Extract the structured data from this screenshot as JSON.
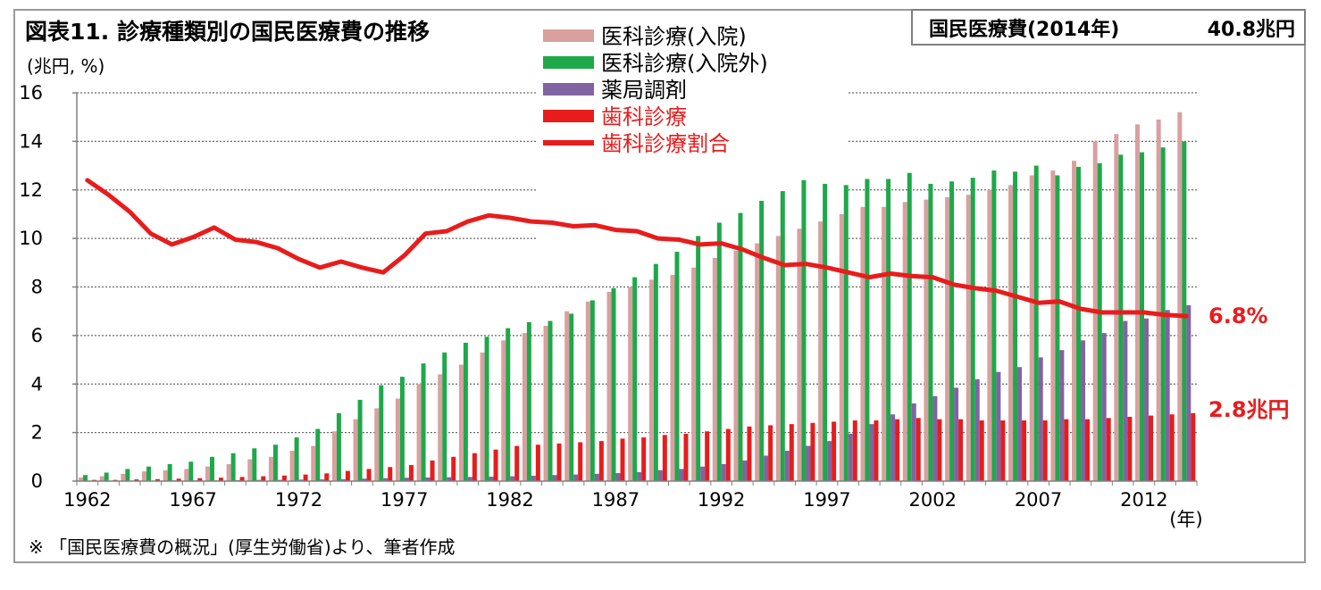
{
  "header": {
    "title": "図表11. 診療種類別の国民医療費の推移",
    "total_label": "国民医療費(2014年)",
    "total_value": "40.8兆円"
  },
  "footer": {
    "note": "※ 「国民医療費の概況」(厚生労働省)より、筆者作成"
  },
  "colors": {
    "inpatient": "#d9a0a0",
    "outpatient": "#1ea84a",
    "pharmacy": "#8064a2",
    "dental": "#e81c1c",
    "ratio": "#e81c1c",
    "grid": "#6a6a6a"
  },
  "chart_data": {
    "type": "bar",
    "ylabel": "(兆円, %)",
    "xlabel": "(年)",
    "ylim": [
      0,
      16
    ],
    "yticks": [
      "0",
      "2",
      "4",
      "6",
      "8",
      "10",
      "12",
      "14",
      "16"
    ],
    "xticks": [
      "1962",
      "1967",
      "1972",
      "1977",
      "1982",
      "1987",
      "1992",
      "1997",
      "2002",
      "2007",
      "2012"
    ],
    "grid": "horizontal dotted",
    "legend_position": "top-center",
    "x": [
      1962,
      1963,
      1964,
      1965,
      1966,
      1967,
      1968,
      1969,
      1970,
      1971,
      1972,
      1973,
      1974,
      1975,
      1976,
      1977,
      1978,
      1979,
      1980,
      1981,
      1982,
      1983,
      1984,
      1985,
      1986,
      1987,
      1988,
      1989,
      1990,
      1991,
      1992,
      1993,
      1994,
      1995,
      1996,
      1997,
      1998,
      1999,
      2000,
      2001,
      2002,
      2003,
      2004,
      2005,
      2006,
      2007,
      2008,
      2009,
      2010,
      2011,
      2012,
      2013,
      2014
    ],
    "series": [
      {
        "name": "医科診療(入院)",
        "key": "inpatient",
        "kind": "bar",
        "values": [
          0.15,
          0.2,
          0.3,
          0.4,
          0.45,
          0.5,
          0.6,
          0.7,
          0.9,
          1.0,
          1.25,
          1.45,
          2.05,
          2.55,
          3.0,
          3.4,
          4.0,
          4.4,
          4.8,
          5.3,
          5.8,
          6.1,
          6.4,
          7.0,
          7.4,
          7.8,
          8.0,
          8.3,
          8.5,
          8.8,
          9.2,
          9.5,
          9.8,
          10.1,
          10.4,
          10.7,
          11.0,
          11.3,
          11.3,
          11.5,
          11.6,
          11.7,
          11.8,
          12.0,
          12.2,
          12.6,
          12.8,
          13.2,
          14.0,
          14.3,
          14.7,
          14.9,
          15.2
        ]
      },
      {
        "name": "医科診療(入院外)",
        "key": "outpatient",
        "kind": "bar",
        "values": [
          0.25,
          0.35,
          0.5,
          0.6,
          0.7,
          0.8,
          1.0,
          1.15,
          1.35,
          1.5,
          1.8,
          2.15,
          2.8,
          3.35,
          3.95,
          4.3,
          4.85,
          5.3,
          5.7,
          5.95,
          6.3,
          6.55,
          6.6,
          6.9,
          7.45,
          7.95,
          8.4,
          8.95,
          9.45,
          10.1,
          10.65,
          11.05,
          11.55,
          11.95,
          12.4,
          12.25,
          12.2,
          12.45,
          12.45,
          12.7,
          12.25,
          12.35,
          12.5,
          12.8,
          12.75,
          13.0,
          12.6,
          12.95,
          13.1,
          13.45,
          13.55,
          13.75,
          14.0
        ]
      },
      {
        "name": "薬局調剤",
        "key": "pharmacy",
        "kind": "bar",
        "values": [
          0.02,
          0.02,
          0.02,
          0.02,
          0.03,
          0.03,
          0.03,
          0.04,
          0.05,
          0.05,
          0.06,
          0.07,
          0.08,
          0.1,
          0.12,
          0.14,
          0.15,
          0.16,
          0.17,
          0.18,
          0.2,
          0.22,
          0.25,
          0.27,
          0.3,
          0.33,
          0.37,
          0.45,
          0.5,
          0.6,
          0.7,
          0.85,
          1.05,
          1.25,
          1.45,
          1.65,
          1.95,
          2.35,
          2.75,
          3.2,
          3.5,
          3.85,
          4.2,
          4.5,
          4.7,
          5.1,
          5.4,
          5.8,
          6.1,
          6.6,
          6.7,
          7.05,
          7.25
        ]
      },
      {
        "name": "歯科診療",
        "key": "dental",
        "kind": "bar",
        "values": [
          0.05,
          0.05,
          0.07,
          0.08,
          0.1,
          0.12,
          0.14,
          0.17,
          0.2,
          0.23,
          0.27,
          0.32,
          0.42,
          0.5,
          0.58,
          0.66,
          0.85,
          1.0,
          1.15,
          1.3,
          1.45,
          1.5,
          1.55,
          1.6,
          1.65,
          1.75,
          1.8,
          1.9,
          1.95,
          2.05,
          2.15,
          2.25,
          2.3,
          2.35,
          2.4,
          2.45,
          2.5,
          2.5,
          2.55,
          2.6,
          2.55,
          2.55,
          2.5,
          2.5,
          2.5,
          2.5,
          2.55,
          2.55,
          2.6,
          2.65,
          2.7,
          2.75,
          2.8
        ]
      },
      {
        "name": "歯科診療割合",
        "key": "ratio",
        "kind": "line",
        "values": [
          12.4,
          11.8,
          11.1,
          10.2,
          9.75,
          10.05,
          10.45,
          9.95,
          9.85,
          9.6,
          9.15,
          8.8,
          9.05,
          8.8,
          8.6,
          9.3,
          10.2,
          10.3,
          10.7,
          10.95,
          10.85,
          10.7,
          10.65,
          10.5,
          10.55,
          10.35,
          10.3,
          10.0,
          9.95,
          9.75,
          9.8,
          9.55,
          9.2,
          8.9,
          8.95,
          8.8,
          8.6,
          8.4,
          8.55,
          8.45,
          8.4,
          8.1,
          7.95,
          7.85,
          7.6,
          7.35,
          7.4,
          7.1,
          6.95,
          6.95,
          6.95,
          6.85,
          6.8
        ]
      }
    ],
    "annotations": [
      {
        "key": "ratio_end",
        "text": "6.8%"
      },
      {
        "key": "dental_end",
        "text": "2.8兆円"
      }
    ]
  }
}
